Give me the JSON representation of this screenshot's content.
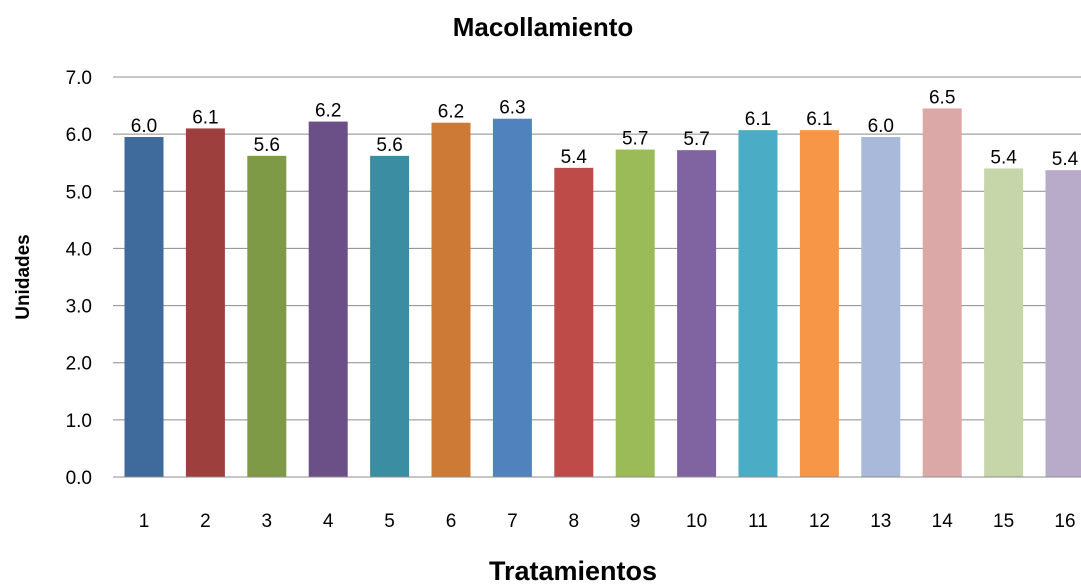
{
  "chart_data": {
    "type": "bar",
    "title": "Macollamiento",
    "xlabel": "Tratamientos",
    "ylabel": "Unidades",
    "ylim": [
      0,
      7
    ],
    "ytick_step": 1,
    "ytick_labels": [
      "0.0",
      "1.0",
      "2.0",
      "3.0",
      "4.0",
      "5.0",
      "6.0",
      "7.0"
    ],
    "grid": true,
    "legend": "none",
    "categories": [
      "1",
      "2",
      "3",
      "4",
      "5",
      "6",
      "7",
      "8",
      "9",
      "10",
      "11",
      "12",
      "13",
      "14",
      "15",
      "16"
    ],
    "values": [
      5.95,
      6.1,
      5.62,
      6.22,
      5.62,
      6.2,
      6.27,
      5.41,
      5.73,
      5.72,
      6.07,
      6.07,
      5.95,
      6.45,
      5.4,
      5.37
    ],
    "data_labels": [
      "6.0",
      "6.1",
      "5.6",
      "6.2",
      "5.6",
      "6.2",
      "6.3",
      "5.4",
      "5.7",
      "5.7",
      "6.1",
      "6.1",
      "6.0",
      "6.5",
      "5.4",
      "5.4"
    ],
    "colors": [
      "#3e6a9c",
      "#9c3f3d",
      "#7e9a47",
      "#6a5086",
      "#3b8ea2",
      "#cd7a37",
      "#5082be",
      "#be4b48",
      "#9bbb59",
      "#8064a2",
      "#4bacc6",
      "#f79646",
      "#a9b9d9",
      "#dca8a7",
      "#c6d6a9",
      "#b8abc9"
    ]
  }
}
